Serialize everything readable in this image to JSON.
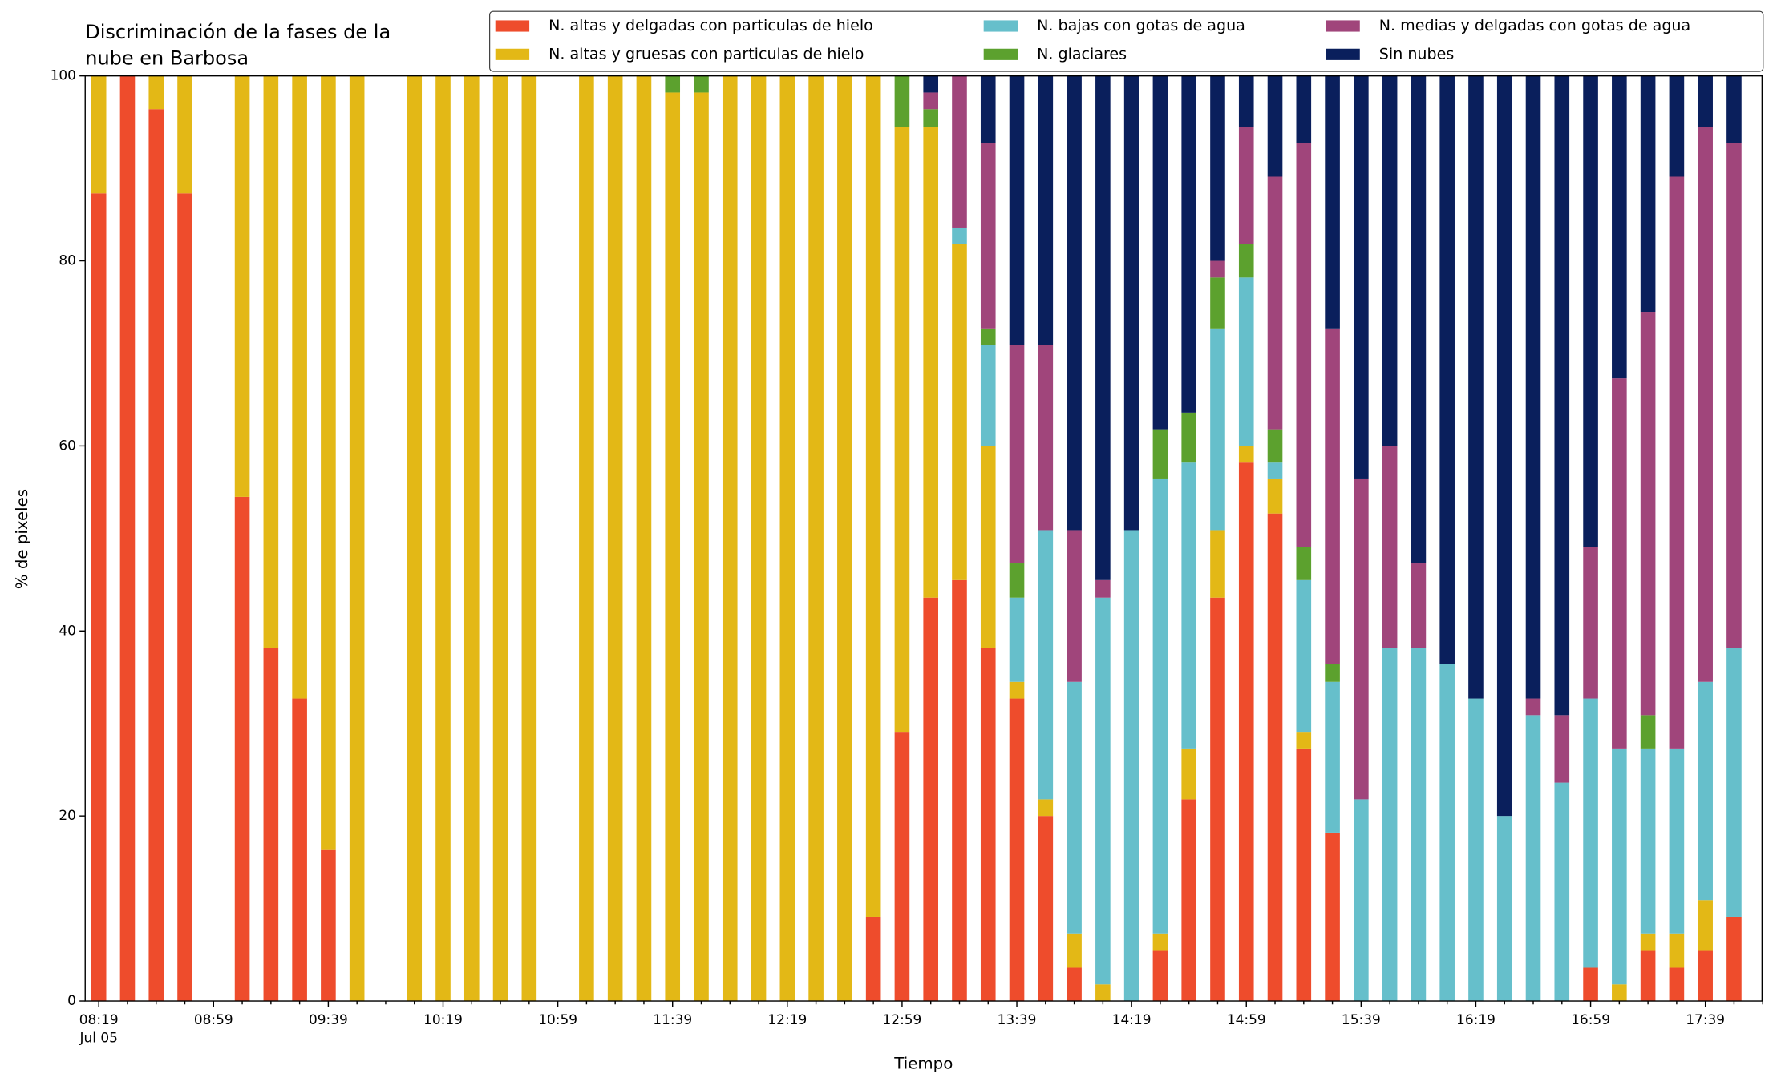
{
  "chart_data": {
    "type": "stacked-bar",
    "title": [
      "Discriminación de la fases de la",
      "nube en Barbosa"
    ],
    "x_label": "Tiempo",
    "y_label": "% de pixeles",
    "x_sublabel": "Jul 05",
    "categories": [
      "08:19",
      null,
      null,
      null,
      "08:59",
      null,
      null,
      null,
      "09:39",
      null,
      null,
      null,
      "10:19",
      null,
      null,
      null,
      "10:59",
      null,
      null,
      null,
      "11:39",
      null,
      null,
      null,
      "12:19",
      null,
      null,
      null,
      "12:59",
      null,
      null,
      null,
      "13:39",
      null,
      null,
      null,
      "14:19",
      null,
      null,
      null,
      "14:59",
      null,
      null,
      null,
      "15:39",
      null,
      null,
      null,
      "16:19",
      null,
      null,
      null,
      "16:59",
      null,
      null,
      null,
      "17:39",
      null
    ],
    "ylim": [
      0,
      100
    ],
    "yticks": [
      0,
      20,
      40,
      60,
      80,
      100
    ],
    "legend": "top",
    "series": [
      {
        "name": "N. altas y delgadas con particulas de hielo",
        "color": "#ee4c2c",
        "values": [
          87.3,
          100,
          96.4,
          87.3,
          null,
          54.5,
          38.2,
          32.7,
          16.4,
          0,
          null,
          0,
          0,
          0,
          0,
          0,
          null,
          0,
          0,
          0,
          0,
          0,
          0,
          0,
          0,
          0,
          0,
          9.1,
          29.1,
          43.6,
          45.5,
          38.2,
          32.7,
          20,
          3.6,
          0,
          0,
          5.5,
          21.8,
          43.6,
          58.2,
          52.7,
          27.3,
          18.2,
          0,
          0,
          0,
          0,
          0,
          0,
          0,
          0,
          3.6,
          0,
          5.5,
          3.6,
          5.5,
          9.1
        ]
      },
      {
        "name": "N. altas y gruesas con particulas de hielo",
        "color": "#e3b816",
        "values": [
          12.7,
          0,
          3.6,
          12.7,
          null,
          45.5,
          61.8,
          67.3,
          83.6,
          100,
          null,
          100,
          100,
          100,
          100,
          100,
          null,
          100,
          100,
          100,
          98.2,
          98.2,
          100,
          100,
          100,
          100,
          100,
          90.9,
          65.4,
          50.9,
          36.3,
          21.8,
          1.8,
          1.8,
          3.7,
          1.8,
          0,
          1.8,
          5.5,
          7.3,
          1.8,
          3.7,
          1.8,
          0,
          0,
          0,
          0,
          0,
          0,
          0,
          0,
          0,
          0,
          1.8,
          1.8,
          3.7,
          5.4,
          0
        ]
      },
      {
        "name": "N. bajas con gotas de agua",
        "color": "#66bfcb",
        "values": [
          0,
          0,
          0,
          0,
          null,
          0,
          0,
          0,
          0,
          0,
          null,
          0,
          0,
          0,
          0,
          0,
          null,
          0,
          0,
          0,
          0,
          0,
          0,
          0,
          0,
          0,
          0,
          0,
          0,
          0,
          1.8,
          10.9,
          9.1,
          29.1,
          27.2,
          41.8,
          50.9,
          49.1,
          30.9,
          21.8,
          18.2,
          1.8,
          16.4,
          16.3,
          21.8,
          38.2,
          38.2,
          36.4,
          32.7,
          20,
          30.9,
          23.6,
          29.1,
          25.5,
          20,
          20,
          23.6,
          29.1
        ]
      },
      {
        "name": "N. glaciares",
        "color": "#5ca12e",
        "values": [
          0,
          0,
          0,
          0,
          null,
          0,
          0,
          0,
          0,
          0,
          null,
          0,
          0,
          0,
          0,
          0,
          null,
          0,
          0,
          0,
          1.8,
          1.8,
          0,
          0,
          0,
          0,
          0,
          0,
          5.5,
          1.9,
          0,
          1.8,
          3.7,
          0,
          0,
          0,
          0,
          5.4,
          5.4,
          5.5,
          3.6,
          3.6,
          3.6,
          1.9,
          0,
          0,
          0,
          0,
          0,
          0,
          0,
          0,
          0,
          0,
          3.6,
          0,
          0,
          0
        ]
      },
      {
        "name": "N. medias y delgadas con gotas de agua",
        "color": "#a0457b",
        "values": [
          0,
          0,
          0,
          0,
          null,
          0,
          0,
          0,
          0,
          0,
          null,
          0,
          0,
          0,
          0,
          0,
          null,
          0,
          0,
          0,
          0,
          0,
          0,
          0,
          0,
          0,
          0,
          0,
          0,
          1.8,
          16.4,
          20,
          23.6,
          20,
          16.4,
          1.9,
          0,
          0,
          0,
          1.8,
          12.7,
          27.3,
          43.6,
          36.3,
          34.6,
          21.8,
          9.1,
          0,
          0,
          0,
          1.8,
          7.3,
          16.4,
          40,
          43.6,
          61.8,
          60,
          54.5
        ]
      },
      {
        "name": "Sin nubes",
        "color": "#0a1f5c",
        "values": [
          0,
          0,
          0,
          0,
          null,
          0,
          0,
          0,
          0,
          0,
          null,
          0,
          0,
          0,
          0,
          0,
          null,
          0,
          0,
          0,
          0,
          0,
          0,
          0,
          0,
          0,
          0,
          0,
          0,
          1.8,
          0,
          7.3,
          29.1,
          29.1,
          49.1,
          54.5,
          49.1,
          38.2,
          36.4,
          20,
          5.5,
          10.9,
          7.3,
          27.3,
          43.6,
          40,
          52.7,
          63.6,
          67.3,
          80,
          67.3,
          69.1,
          50.9,
          32.7,
          25.5,
          10.9,
          5.5,
          7.3
        ]
      }
    ]
  }
}
